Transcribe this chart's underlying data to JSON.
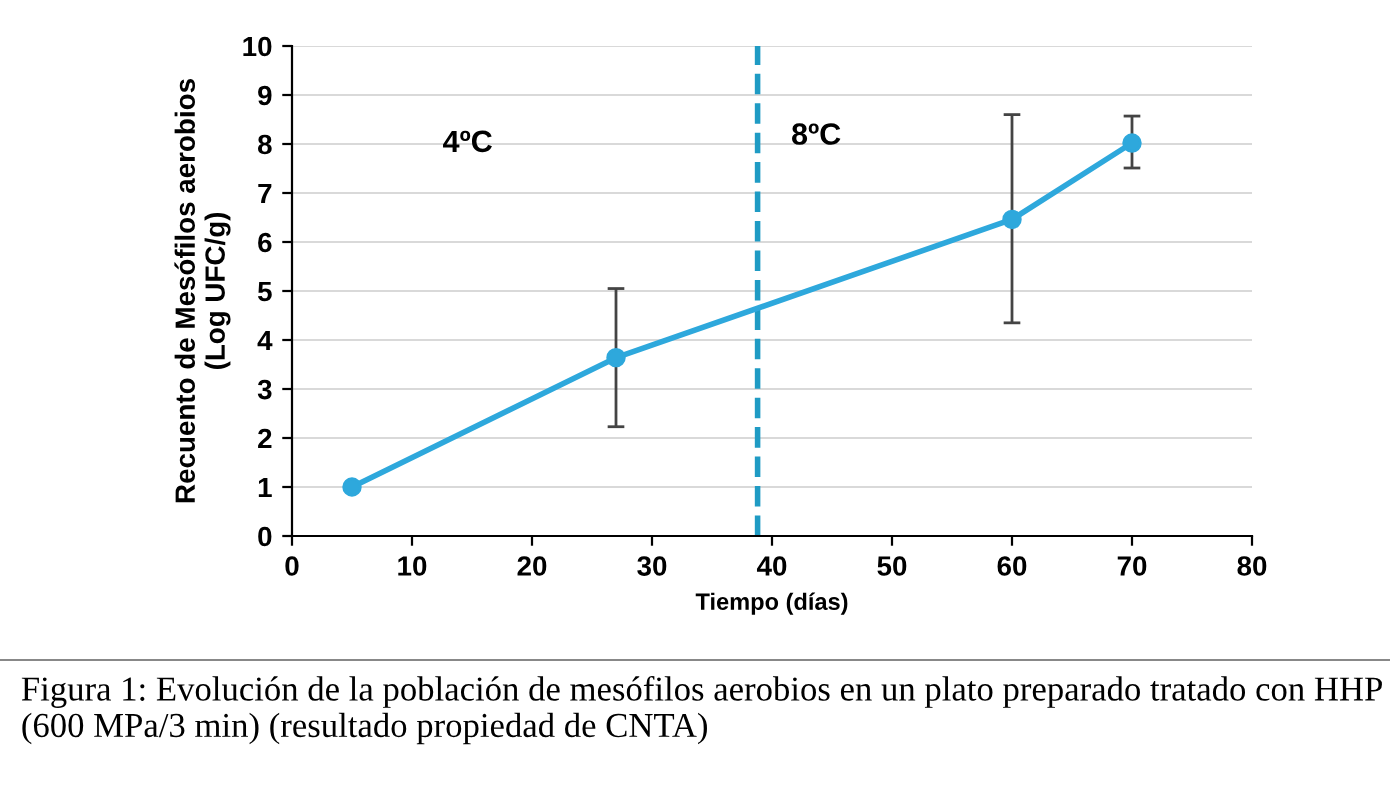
{
  "chart_data": {
    "type": "line",
    "xlabel": "Tiempo (días)",
    "ylabel": "Recuento de Mesófilos aerobios\n(Log UFC/g)",
    "x": [
      5,
      27,
      60,
      70
    ],
    "series": [
      {
        "color": "#2ea8dc",
        "values": [
          1.0,
          3.64,
          6.46,
          8.02
        ],
        "errors": [
          null,
          [
            2.23,
            5.05
          ],
          [
            4.35,
            8.6
          ],
          [
            7.51,
            8.57
          ]
        ]
      }
    ],
    "marker": "circle",
    "line_style": "solid",
    "grid": "y",
    "legend": false,
    "xlim": [
      0,
      80
    ],
    "xticks": [
      0,
      10,
      20,
      30,
      40,
      50,
      60,
      70,
      80
    ],
    "ylim": [
      0,
      10
    ],
    "yticks": [
      0,
      1,
      2,
      3,
      4,
      5,
      6,
      7,
      8,
      9,
      10
    ],
    "ref_lines": [
      {
        "axis": "x",
        "value": 38.8,
        "color": "#1f9bc4",
        "line_style": "dashed"
      }
    ],
    "annotations": [
      "4ºC",
      "8ºC",
      "Figura 1: Evolución de la población de mesófilos aerobios en un plato preparado tratado con HHP (600 MPa/3 min) (resultado propiedad de CNTA)"
    ]
  }
}
